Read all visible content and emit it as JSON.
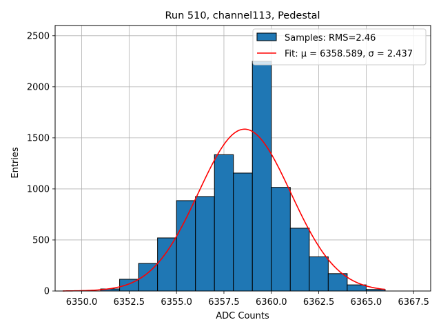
{
  "chart_data": {
    "type": "bar",
    "title": "Run 510, channel113, Pedestal",
    "xlabel": "ADC Counts",
    "ylabel": "Entries",
    "xlim": [
      6348.6,
      6368.4
    ],
    "ylim": [
      0,
      2600
    ],
    "x_ticks": [
      6350.0,
      6352.5,
      6355.0,
      6357.5,
      6360.0,
      6362.5,
      6365.0,
      6367.5
    ],
    "x_tick_labels": [
      "6350.0",
      "6352.5",
      "6355.0",
      "6357.5",
      "6360.0",
      "6362.5",
      "6365.0",
      "6367.5"
    ],
    "y_ticks": [
      0,
      500,
      1000,
      1500,
      2000,
      2500
    ],
    "y_tick_labels": [
      "0",
      "500",
      "1000",
      "1500",
      "2000",
      "2500"
    ],
    "grid": true,
    "legend_position": "top-right",
    "bin_edges": [
      6351,
      6352,
      6353,
      6354,
      6355,
      6356,
      6357,
      6358,
      6359,
      6360,
      6361,
      6362,
      6363,
      6364,
      6365,
      6366
    ],
    "series": [
      {
        "name": "Samples: RMS=2.46",
        "kind": "histogram",
        "color": "#1f77b4",
        "edgecolor": "#000000",
        "values": [
          20,
          115,
          270,
          520,
          885,
          925,
          1335,
          1155,
          2250,
          1015,
          615,
          335,
          170,
          60,
          15
        ]
      },
      {
        "name": "Fit: μ = 6358.589, σ = 2.437",
        "kind": "gaussian-fit",
        "color": "#ff0000",
        "mu": 6358.589,
        "sigma": 2.437,
        "amplitude": 1585,
        "x_range": [
          6349,
          6366
        ]
      }
    ]
  }
}
